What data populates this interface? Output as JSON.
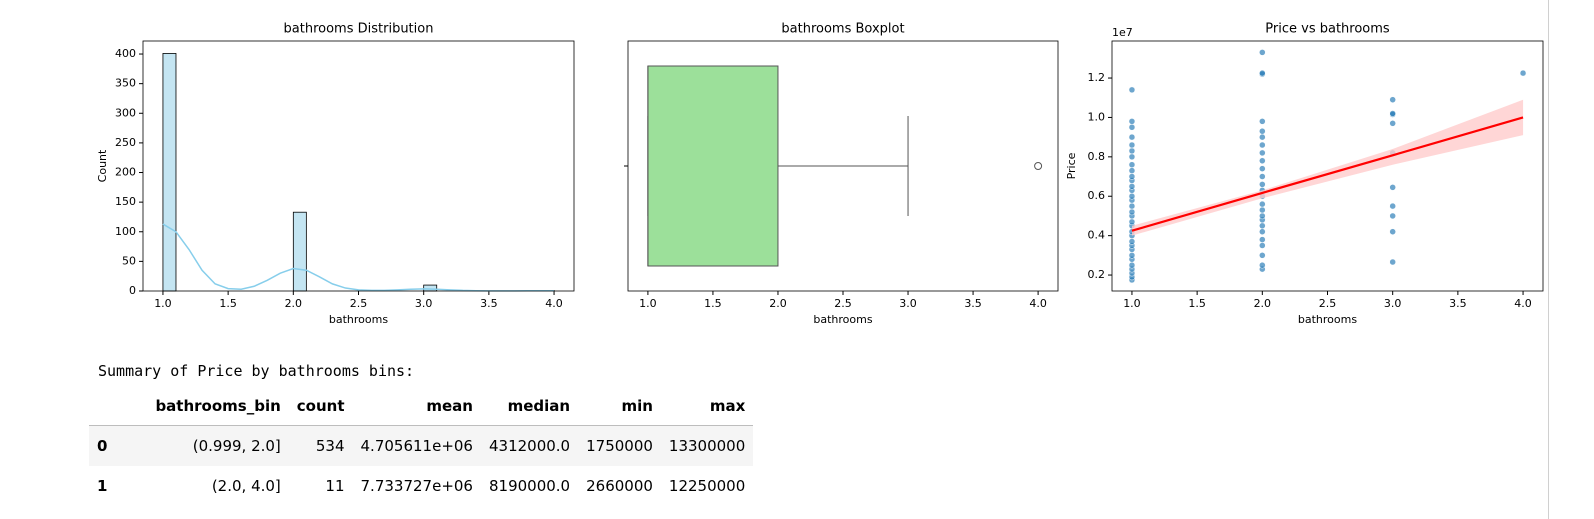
{
  "chart_data": [
    {
      "type": "histogram",
      "title": "bathrooms Distribution",
      "x_label": "bathrooms",
      "y_label": "Count",
      "bins": [
        1.0,
        1.1,
        1.2,
        1.3,
        1.4,
        1.5,
        1.6,
        1.7,
        1.8,
        1.9,
        2.0,
        2.1,
        2.2,
        2.3,
        2.4,
        2.5,
        2.6,
        2.7,
        2.8,
        2.9,
        3.0,
        3.1,
        3.2,
        3.3,
        3.4,
        3.5,
        3.6,
        3.7,
        3.8,
        3.9,
        4.0
      ],
      "counts": [
        401,
        0,
        0,
        0,
        0,
        0,
        0,
        0,
        0,
        0,
        133,
        0,
        0,
        0,
        0,
        0,
        0,
        0,
        0,
        0,
        10,
        0,
        0,
        0,
        0,
        0,
        0,
        0,
        0,
        1
      ],
      "color": "#c4e5f2",
      "edge_color": "#000000",
      "kde": {
        "color": "#87ceeb",
        "x": [
          1.0,
          1.1,
          1.2,
          1.3,
          1.4,
          1.5,
          1.6,
          1.7,
          1.8,
          1.9,
          2.0,
          2.1,
          2.2,
          2.3,
          2.4,
          2.5,
          2.6,
          2.7,
          2.8,
          2.9,
          3.0,
          3.1,
          3.2,
          3.3,
          3.4,
          3.5,
          3.6,
          3.7,
          3.8,
          3.9,
          4.0
        ],
        "values": [
          113,
          100,
          70,
          35,
          12,
          4,
          3,
          8,
          18,
          30,
          38,
          35,
          24,
          12,
          5,
          2,
          1,
          1,
          2,
          3,
          3.5,
          3,
          2,
          1,
          0.5,
          0.3,
          0.3,
          0.3,
          0.4,
          0.5,
          0.5
        ]
      },
      "xlim": [
        0.847,
        4.153
      ],
      "xticks": [
        {
          "value": 1,
          "label": "1.0"
        },
        1.5,
        {
          "value": 2,
          "label": "2.0"
        },
        2.5,
        {
          "value": 3,
          "label": "3.0"
        },
        3.5,
        {
          "value": 4,
          "label": "4.0"
        }
      ],
      "ylim": [
        0,
        422
      ],
      "yticks": [
        0,
        50,
        100,
        150,
        200,
        250,
        300,
        350,
        400
      ]
    },
    {
      "type": "box",
      "title": "bathrooms Boxplot",
      "x_label": "bathrooms",
      "min": 1,
      "q1": 1,
      "median": 1,
      "q3": 2,
      "max": 3,
      "outliers": [
        4
      ],
      "color": "#9ce09a",
      "xlim": [
        0.847,
        4.153
      ],
      "xticks": [
        {
          "value": 1,
          "label": "1.0"
        },
        1.5,
        {
          "value": 2,
          "label": "2.0"
        },
        2.5,
        {
          "value": 3,
          "label": "3.0"
        },
        3.5,
        {
          "value": 4,
          "label": "4.0"
        }
      ]
    },
    {
      "type": "scatter",
      "title": "Price vs bathrooms",
      "x_label": "bathrooms",
      "y_label": "Price",
      "offset_label": "1e7",
      "color": "#1f77b4",
      "x": [
        1,
        1,
        1,
        1,
        1,
        1,
        1,
        1,
        1,
        1,
        1,
        1,
        1,
        1,
        1,
        1,
        1,
        1,
        1,
        1,
        1,
        1,
        1,
        1,
        1,
        1,
        1,
        1,
        1,
        1,
        1,
        1,
        2,
        2,
        2,
        2,
        2,
        2,
        2,
        2,
        2,
        2,
        2,
        2,
        2,
        2,
        2,
        2,
        2,
        2,
        2,
        2,
        2,
        2,
        2,
        2,
        2,
        3,
        3,
        3,
        3,
        3,
        3,
        3,
        3,
        3,
        3,
        4
      ],
      "values": [
        0.175,
        0.19,
        0.21,
        0.23,
        0.25,
        0.28,
        0.3,
        0.33,
        0.35,
        0.37,
        0.4,
        0.42,
        0.45,
        0.47,
        0.5,
        0.52,
        0.55,
        0.58,
        0.6,
        0.63,
        0.65,
        0.68,
        0.7,
        0.73,
        0.76,
        0.8,
        0.83,
        0.86,
        0.9,
        0.95,
        0.98,
        1.14,
        0.23,
        0.25,
        0.3,
        0.35,
        0.38,
        0.42,
        0.45,
        0.48,
        0.5,
        0.53,
        0.56,
        0.6,
        0.63,
        0.66,
        0.7,
        0.74,
        0.78,
        0.82,
        0.86,
        0.9,
        0.93,
        0.98,
        1.22,
        1.225,
        1.33,
        0.266,
        0.42,
        0.5,
        0.55,
        0.645,
        0.82,
        0.97,
        1.015,
        1.02,
        1.09,
        1.225
      ],
      "regression": {
        "color": "#ff0000",
        "ci_color": "#ffcccc",
        "x": [
          1,
          2,
          3,
          4
        ],
        "values": [
          0.425,
          0.617,
          0.808,
          1.0
        ],
        "ci_lower": [
          0.4,
          0.59,
          0.76,
          0.91
        ],
        "ci_upper": [
          0.45,
          0.63,
          0.84,
          1.09
        ]
      },
      "xlim": [
        0.847,
        4.153
      ],
      "xticks": [
        {
          "value": 1,
          "label": "1.0"
        },
        1.5,
        {
          "value": 2,
          "label": "2.0"
        },
        2.5,
        {
          "value": 3,
          "label": "3.0"
        },
        3.5,
        {
          "value": 4,
          "label": "4.0"
        }
      ],
      "ylim": [
        0.119,
        1.388
      ],
      "yticks": [
        0.2,
        0.4,
        0.6,
        0.8,
        {
          "value": 1,
          "label": "1.0"
        },
        1.2
      ]
    }
  ],
  "output_text": "Summary of Price by bathrooms bins:",
  "table": {
    "columns": [
      "bathrooms_bin",
      "count",
      "mean",
      "median",
      "min",
      "max"
    ],
    "rows": [
      [
        "0",
        "(0.999, 2.0]",
        "534",
        "4.705611e+06",
        "4312000.0",
        "1750000",
        "13300000"
      ],
      [
        "1",
        "(2.0, 4.0]",
        "11",
        "7.733727e+06",
        "8190000.0",
        "2660000",
        "12250000"
      ]
    ]
  }
}
